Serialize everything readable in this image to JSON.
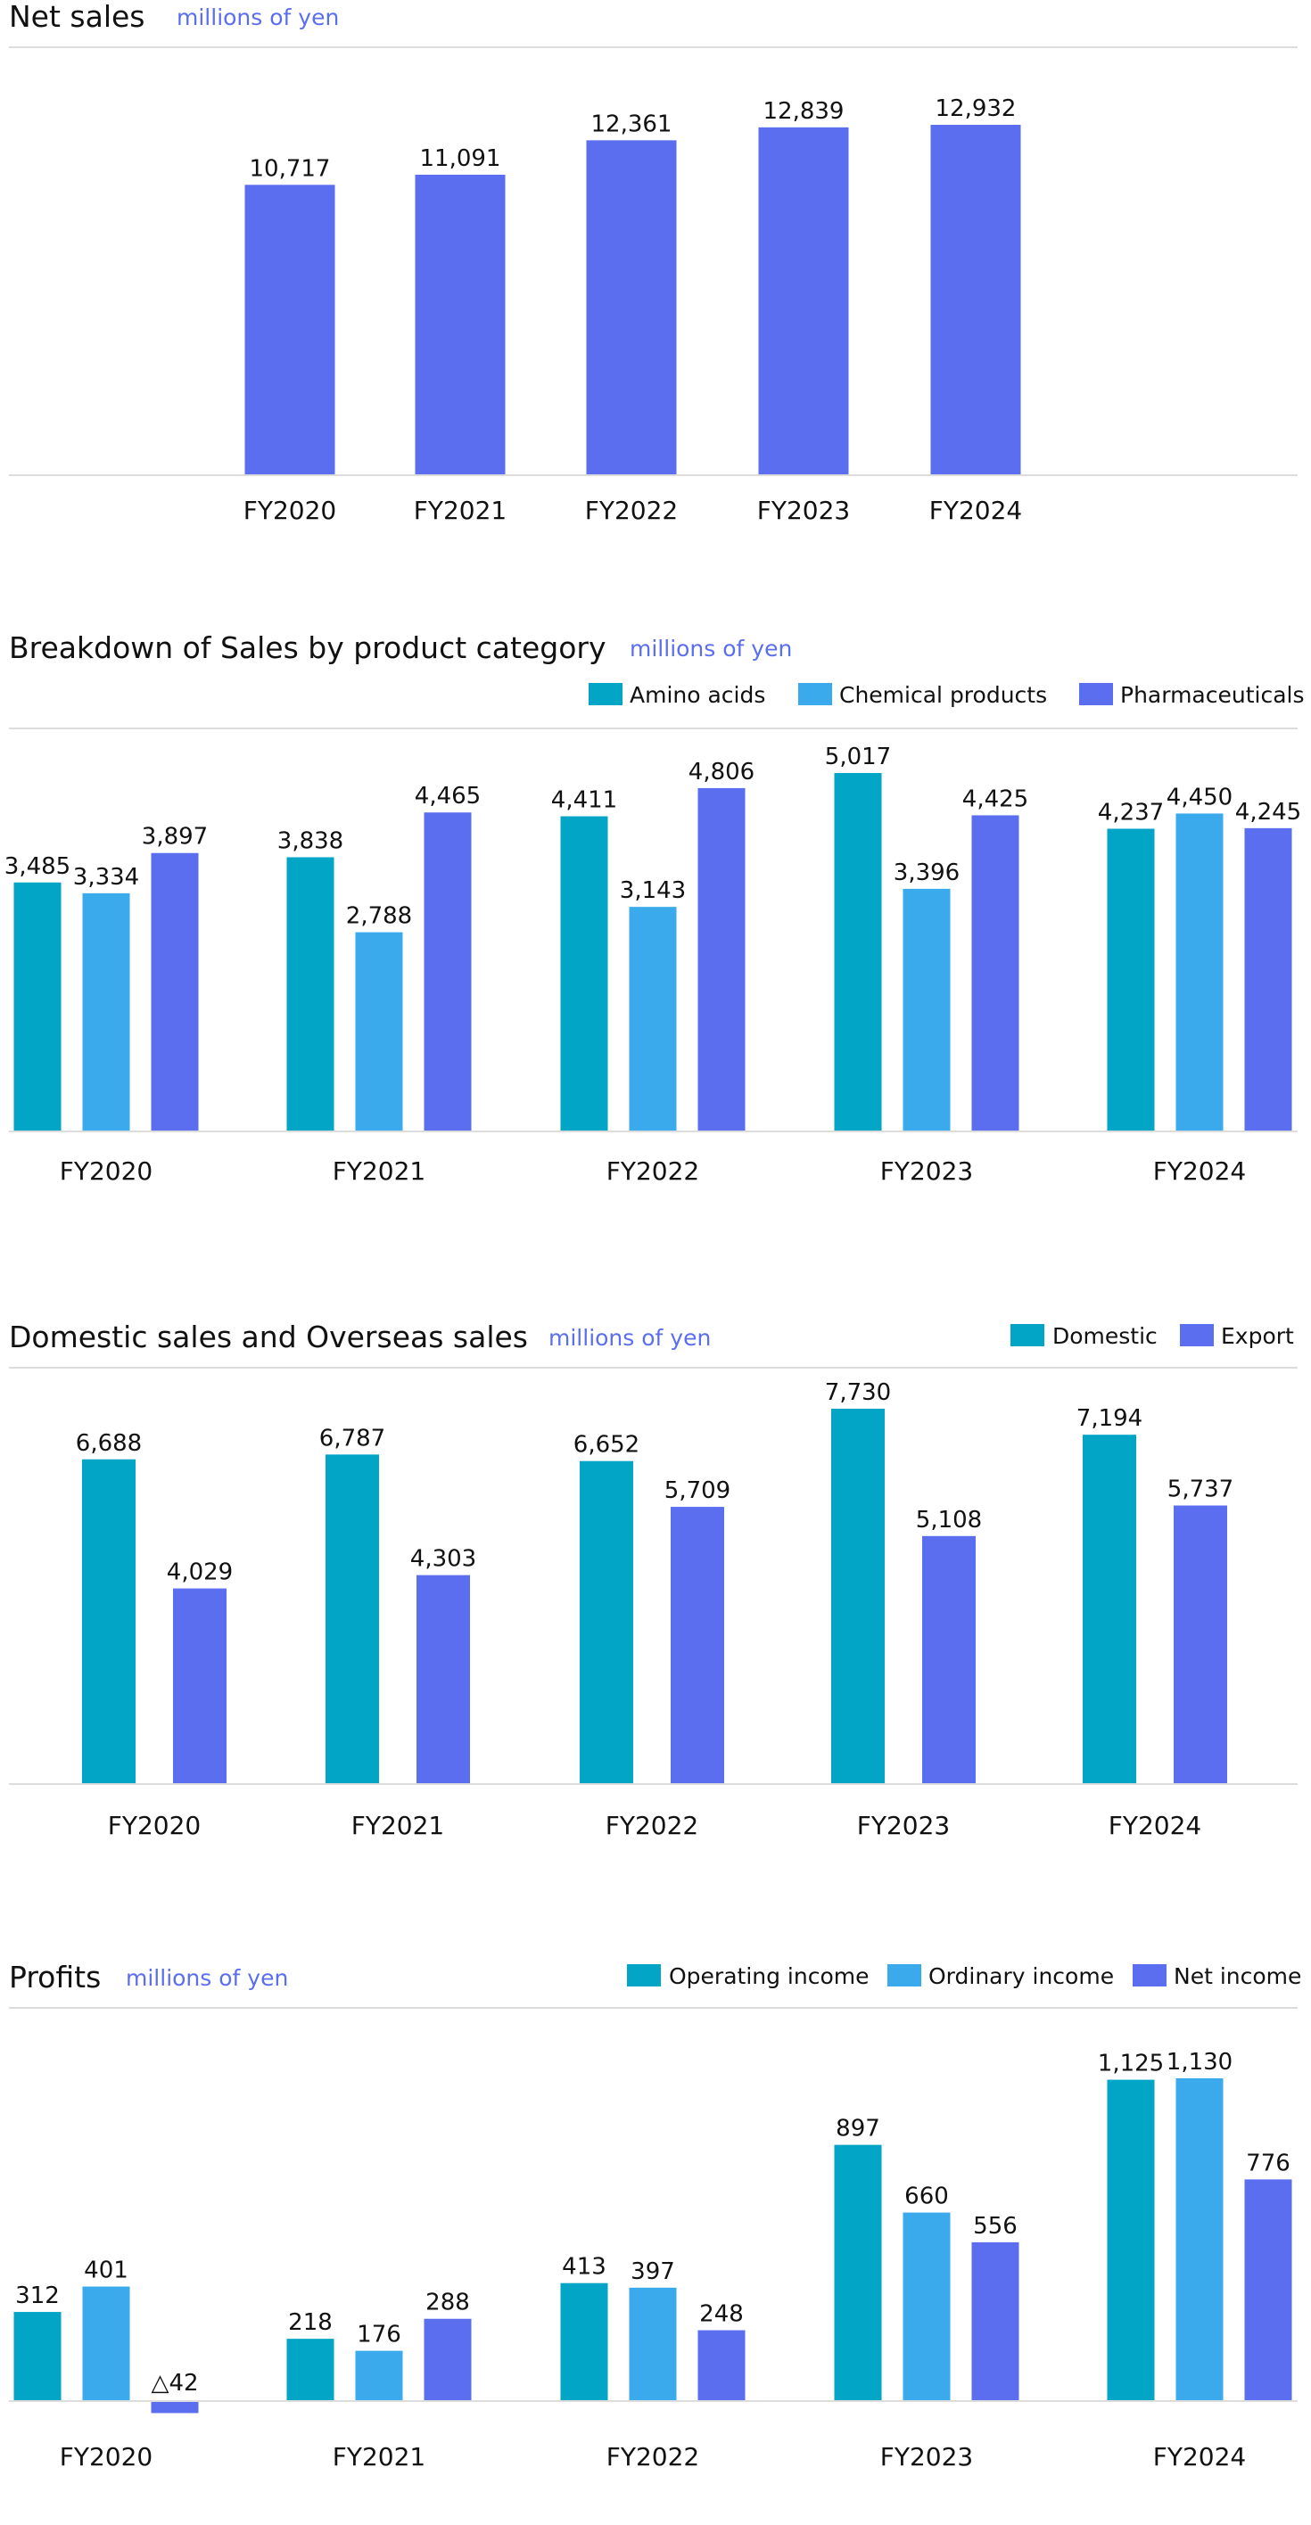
{
  "colors": {
    "teal": "#02a5c5",
    "light_blue": "#3baaec",
    "indigo": "#5b6ef0"
  },
  "chart_data": [
    {
      "type": "bar",
      "title": "Net sales",
      "unit": "millions of yen",
      "categories": [
        "FY2020",
        "FY2021",
        "FY2022",
        "FY2023",
        "FY2024"
      ],
      "series": [
        {
          "values": [
            10717,
            11091,
            12361,
            12839,
            12932
          ],
          "labels": [
            "10,717",
            "11,091",
            "12,361",
            "12,839",
            "12,932"
          ],
          "color": "#5b6ef0"
        }
      ],
      "ylim": [
        0,
        13000
      ],
      "grid": false
    },
    {
      "type": "bar",
      "title": "Breakdown of Sales by product category",
      "unit": "millions of yen",
      "legend_position": "top-right",
      "categories": [
        "FY2020",
        "FY2021",
        "FY2022",
        "FY2023",
        "FY2024"
      ],
      "series": [
        {
          "name": "Amino acids",
          "color": "#02a5c5",
          "values": [
            3485,
            3838,
            4411,
            5017,
            4237
          ],
          "labels": [
            "3,485",
            "3,838",
            "4,411",
            "5,017",
            "4,237"
          ]
        },
        {
          "name": "Chemical products",
          "color": "#3baaec",
          "values": [
            3334,
            2788,
            3143,
            3396,
            4450
          ],
          "labels": [
            "3,334",
            "2,788",
            "3,143",
            "3,396",
            "4,450"
          ]
        },
        {
          "name": "Pharmaceuticals",
          "color": "#5b6ef0",
          "values": [
            3897,
            4465,
            4806,
            4425,
            4245
          ],
          "labels": [
            "3,897",
            "4,465",
            "4,806",
            "4,425",
            "4,245"
          ]
        }
      ],
      "ylim": [
        0,
        5200
      ],
      "grid": false
    },
    {
      "type": "bar",
      "title": "Domestic sales and Overseas sales",
      "unit": "millions of yen",
      "legend_position": "top-right",
      "categories": [
        "FY2020",
        "FY2021",
        "FY2022",
        "FY2023",
        "FY2024"
      ],
      "series": [
        {
          "name": "Domestic",
          "color": "#02a5c5",
          "values": [
            6688,
            6787,
            6652,
            7730,
            7194
          ],
          "labels": [
            "6,688",
            "6,787",
            "6,652",
            "7,730",
            "7,194"
          ]
        },
        {
          "name": "Export",
          "color": "#5b6ef0",
          "values": [
            4029,
            4303,
            5709,
            5108,
            5737
          ],
          "labels": [
            "4,029",
            "4,303",
            "5,709",
            "5,108",
            "5,737"
          ]
        }
      ],
      "ylim": [
        0,
        7900
      ],
      "grid": false
    },
    {
      "type": "bar",
      "title": "Profits",
      "unit": "millions of yen",
      "legend_position": "top-right",
      "categories": [
        "FY2020",
        "FY2021",
        "FY2022",
        "FY2023",
        "FY2024"
      ],
      "series": [
        {
          "name": "Operating income",
          "color": "#02a5c5",
          "values": [
            312,
            218,
            413,
            897,
            1125
          ],
          "labels": [
            "312",
            "218",
            "413",
            "897",
            "1,125"
          ]
        },
        {
          "name": "Ordinary income",
          "color": "#3baaec",
          "values": [
            401,
            176,
            397,
            660,
            1130
          ],
          "labels": [
            "401",
            "176",
            "397",
            "660",
            "1,130"
          ]
        },
        {
          "name": "Net income",
          "color": "#5b6ef0",
          "values": [
            -42,
            288,
            248,
            556,
            776
          ],
          "labels": [
            "△42",
            "288",
            "248",
            "556",
            "776"
          ]
        }
      ],
      "ylim": [
        -42,
        1130
      ],
      "grid": false
    }
  ]
}
